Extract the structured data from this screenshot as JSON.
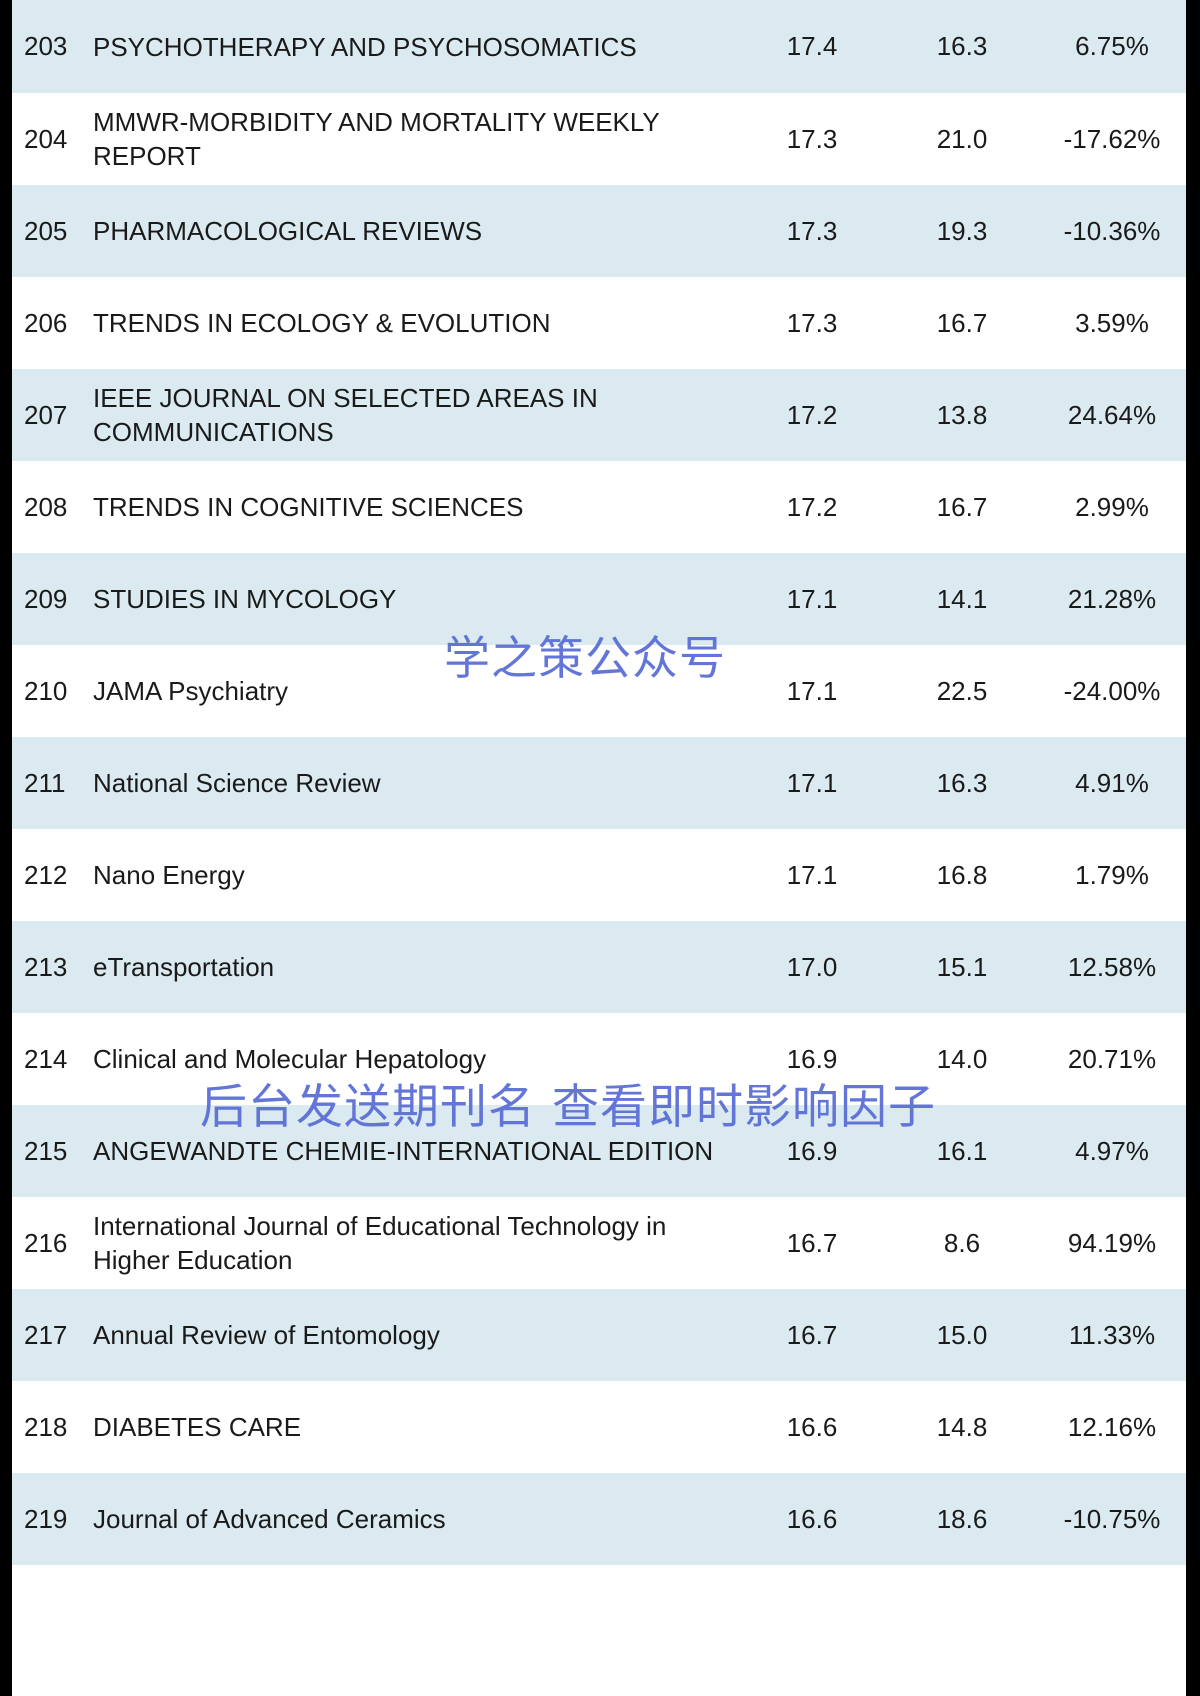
{
  "rows": [
    {
      "rank": "203",
      "name": "PSYCHOTHERAPY AND PSYCHOSOMATICS",
      "if_new": "17.4",
      "if_old": "16.3",
      "change": "6.75%"
    },
    {
      "rank": "204",
      "name": "MMWR-MORBIDITY AND MORTALITY WEEKLY REPORT",
      "if_new": "17.3",
      "if_old": "21.0",
      "change": "-17.62%"
    },
    {
      "rank": "205",
      "name": "PHARMACOLOGICAL REVIEWS",
      "if_new": "17.3",
      "if_old": "19.3",
      "change": "-10.36%"
    },
    {
      "rank": "206",
      "name": "TRENDS IN ECOLOGY & EVOLUTION",
      "if_new": "17.3",
      "if_old": "16.7",
      "change": "3.59%"
    },
    {
      "rank": "207",
      "name": "IEEE JOURNAL ON SELECTED AREAS IN COMMUNICATIONS",
      "if_new": "17.2",
      "if_old": "13.8",
      "change": "24.64%"
    },
    {
      "rank": "208",
      "name": "TRENDS IN COGNITIVE SCIENCES",
      "if_new": "17.2",
      "if_old": "16.7",
      "change": "2.99%"
    },
    {
      "rank": "209",
      "name": "STUDIES IN MYCOLOGY",
      "if_new": "17.1",
      "if_old": "14.1",
      "change": "21.28%"
    },
    {
      "rank": "210",
      "name": "JAMA Psychiatry",
      "if_new": "17.1",
      "if_old": "22.5",
      "change": "-24.00%"
    },
    {
      "rank": "211",
      "name": "National Science Review",
      "if_new": "17.1",
      "if_old": "16.3",
      "change": "4.91%"
    },
    {
      "rank": "212",
      "name": "Nano Energy",
      "if_new": "17.1",
      "if_old": "16.8",
      "change": "1.79%"
    },
    {
      "rank": "213",
      "name": "eTransportation",
      "if_new": "17.0",
      "if_old": "15.1",
      "change": "12.58%"
    },
    {
      "rank": "214",
      "name": "Clinical and Molecular Hepatology",
      "if_new": "16.9",
      "if_old": "14.0",
      "change": "20.71%"
    },
    {
      "rank": "215",
      "name": "ANGEWANDTE CHEMIE-INTERNATIONAL EDITION",
      "if_new": "16.9",
      "if_old": "16.1",
      "change": "4.97%"
    },
    {
      "rank": "216",
      "name": "International Journal of Educational Technology in Higher Education",
      "if_new": "16.7",
      "if_old": "8.6",
      "change": "94.19%"
    },
    {
      "rank": "217",
      "name": "Annual Review of Entomology",
      "if_new": "16.7",
      "if_old": "15.0",
      "change": "11.33%"
    },
    {
      "rank": "218",
      "name": "DIABETES CARE",
      "if_new": "16.6",
      "if_old": "14.8",
      "change": "12.16%"
    },
    {
      "rank": "219",
      "name": "Journal of Advanced Ceramics",
      "if_new": "16.6",
      "if_old": "18.6",
      "change": "-10.75%"
    }
  ],
  "watermarks": {
    "account": "学之策公众号",
    "instruction": "后台发送期刊名 查看即时影响因子"
  },
  "colors": {
    "row_shaded": "#daeaf0",
    "row_plain": "#ffffff",
    "watermark": "#5b6fd6",
    "border": "#000000"
  }
}
